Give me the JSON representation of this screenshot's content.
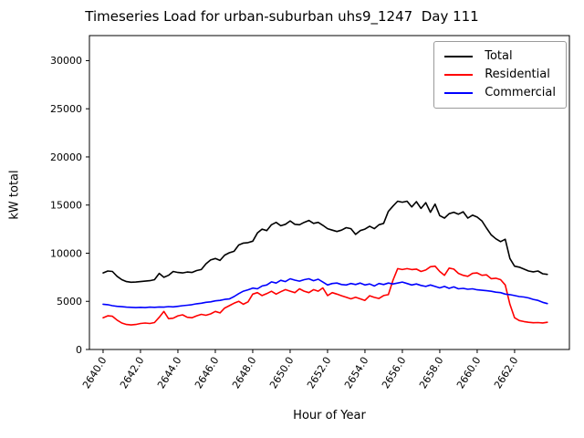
{
  "chart_data": {
    "type": "line",
    "title": "Timeseries Load for urban-suburban uhs9_1247  Day 111",
    "xlabel": "Hour of Year",
    "ylabel": "kW total",
    "legend_position": "upper right",
    "grid": false,
    "xlim": [
      2639.27,
      2664.93
    ],
    "ylim": [
      0,
      32600
    ],
    "xticks": {
      "values": [
        2640,
        2642,
        2644,
        2646,
        2648,
        2650,
        2652,
        2654,
        2656,
        2658,
        2660,
        2662
      ],
      "labels": [
        "2640.0",
        "2642.0",
        "2644.0",
        "2646.0",
        "2648.0",
        "2650.0",
        "2652.0",
        "2654.0",
        "2656.0",
        "2658.0",
        "2660.0",
        "2662.0"
      ]
    },
    "yticks": {
      "values": [
        0,
        5000,
        10000,
        15000,
        20000,
        25000,
        30000
      ],
      "labels": [
        "0",
        "5000",
        "10000",
        "15000",
        "20000",
        "25000",
        "30000"
      ]
    },
    "x": [
      2640.0,
      2640.25,
      2640.5,
      2640.75,
      2641.0,
      2641.25,
      2641.5,
      2641.75,
      2642.0,
      2642.25,
      2642.5,
      2642.75,
      2643.0,
      2643.25,
      2643.5,
      2643.75,
      2644.0,
      2644.25,
      2644.5,
      2644.75,
      2645.0,
      2645.25,
      2645.5,
      2645.75,
      2646.0,
      2646.25,
      2646.5,
      2646.75,
      2647.0,
      2647.25,
      2647.5,
      2647.75,
      2648.0,
      2648.25,
      2648.5,
      2648.75,
      2649.0,
      2649.25,
      2649.5,
      2649.75,
      2650.0,
      2650.25,
      2650.5,
      2650.75,
      2651.0,
      2651.25,
      2651.5,
      2651.75,
      2652.0,
      2652.25,
      2652.5,
      2652.75,
      2653.0,
      2653.25,
      2653.5,
      2653.75,
      2654.0,
      2654.25,
      2654.5,
      2654.75,
      2655.0,
      2655.25,
      2655.5,
      2655.75,
      2656.0,
      2656.25,
      2656.5,
      2656.75,
      2657.0,
      2657.25,
      2657.5,
      2657.75,
      2658.0,
      2658.25,
      2658.5,
      2658.75,
      2659.0,
      2659.25,
      2659.5,
      2659.75,
      2660.0,
      2660.25,
      2660.5,
      2660.75,
      2661.0,
      2661.25,
      2661.5,
      2661.75,
      2662.0,
      2662.25,
      2662.5,
      2662.75,
      2663.0,
      2663.25,
      2663.5,
      2663.75
    ],
    "series": [
      {
        "name": "Total",
        "color": "#000000",
        "values": [
          7950,
          8150,
          8100,
          7600,
          7250,
          7050,
          6980,
          7000,
          7050,
          7100,
          7150,
          7250,
          7900,
          7500,
          7700,
          8100,
          8000,
          7950,
          8050,
          8000,
          8200,
          8300,
          8900,
          9300,
          9450,
          9250,
          9800,
          10050,
          10200,
          10850,
          11050,
          11100,
          11250,
          12100,
          12500,
          12350,
          12950,
          13200,
          12850,
          13000,
          13350,
          13000,
          12950,
          13200,
          13400,
          13100,
          13200,
          12900,
          12550,
          12400,
          12250,
          12400,
          12650,
          12550,
          11950,
          12350,
          12500,
          12800,
          12550,
          12950,
          13100,
          14350,
          14900,
          15400,
          15300,
          15400,
          14800,
          15350,
          14650,
          15250,
          14250,
          15100,
          13900,
          13650,
          14100,
          14250,
          14050,
          14300,
          13650,
          13950,
          13750,
          13350,
          12600,
          11900,
          11500,
          11200,
          11450,
          9450,
          8650,
          8550,
          8350,
          8150,
          8060,
          8150,
          7870,
          7800
        ]
      },
      {
        "name": "Residential",
        "color": "#ff0000",
        "values": [
          3300,
          3500,
          3450,
          3050,
          2750,
          2600,
          2550,
          2600,
          2700,
          2750,
          2700,
          2800,
          3350,
          3950,
          3200,
          3250,
          3500,
          3600,
          3350,
          3300,
          3500,
          3650,
          3550,
          3700,
          3950,
          3800,
          4300,
          4550,
          4800,
          5000,
          4700,
          4950,
          5750,
          5900,
          5600,
          5800,
          6050,
          5750,
          6000,
          6220,
          6060,
          5900,
          6300,
          6060,
          5900,
          6220,
          6060,
          6400,
          5600,
          5900,
          5750,
          5580,
          5420,
          5260,
          5420,
          5260,
          5100,
          5580,
          5410,
          5300,
          5600,
          5700,
          7200,
          8400,
          8300,
          8400,
          8300,
          8350,
          8100,
          8250,
          8600,
          8650,
          8100,
          7700,
          8450,
          8350,
          7900,
          7700,
          7600,
          7900,
          7950,
          7700,
          7750,
          7350,
          7400,
          7250,
          6700,
          4700,
          3300,
          3000,
          2900,
          2820,
          2780,
          2800,
          2760,
          2820
        ]
      },
      {
        "name": "Commercial",
        "color": "#0000ff",
        "values": [
          4700,
          4650,
          4550,
          4480,
          4440,
          4400,
          4380,
          4350,
          4380,
          4350,
          4400,
          4380,
          4420,
          4400,
          4450,
          4430,
          4480,
          4550,
          4600,
          4650,
          4750,
          4800,
          4900,
          4950,
          5050,
          5100,
          5200,
          5250,
          5500,
          5800,
          6060,
          6200,
          6380,
          6300,
          6600,
          6700,
          7020,
          6900,
          7180,
          7050,
          7340,
          7200,
          7100,
          7250,
          7340,
          7150,
          7300,
          7000,
          6700,
          6850,
          6900,
          6750,
          6700,
          6850,
          6750,
          6900,
          6700,
          6800,
          6600,
          6850,
          6750,
          6900,
          6800,
          6900,
          7000,
          6850,
          6700,
          6800,
          6650,
          6550,
          6700,
          6550,
          6400,
          6550,
          6350,
          6500,
          6300,
          6350,
          6250,
          6300,
          6200,
          6150,
          6100,
          6050,
          5950,
          5900,
          5750,
          5700,
          5600,
          5500,
          5450,
          5350,
          5200,
          5100,
          4900,
          4770
        ]
      }
    ]
  }
}
